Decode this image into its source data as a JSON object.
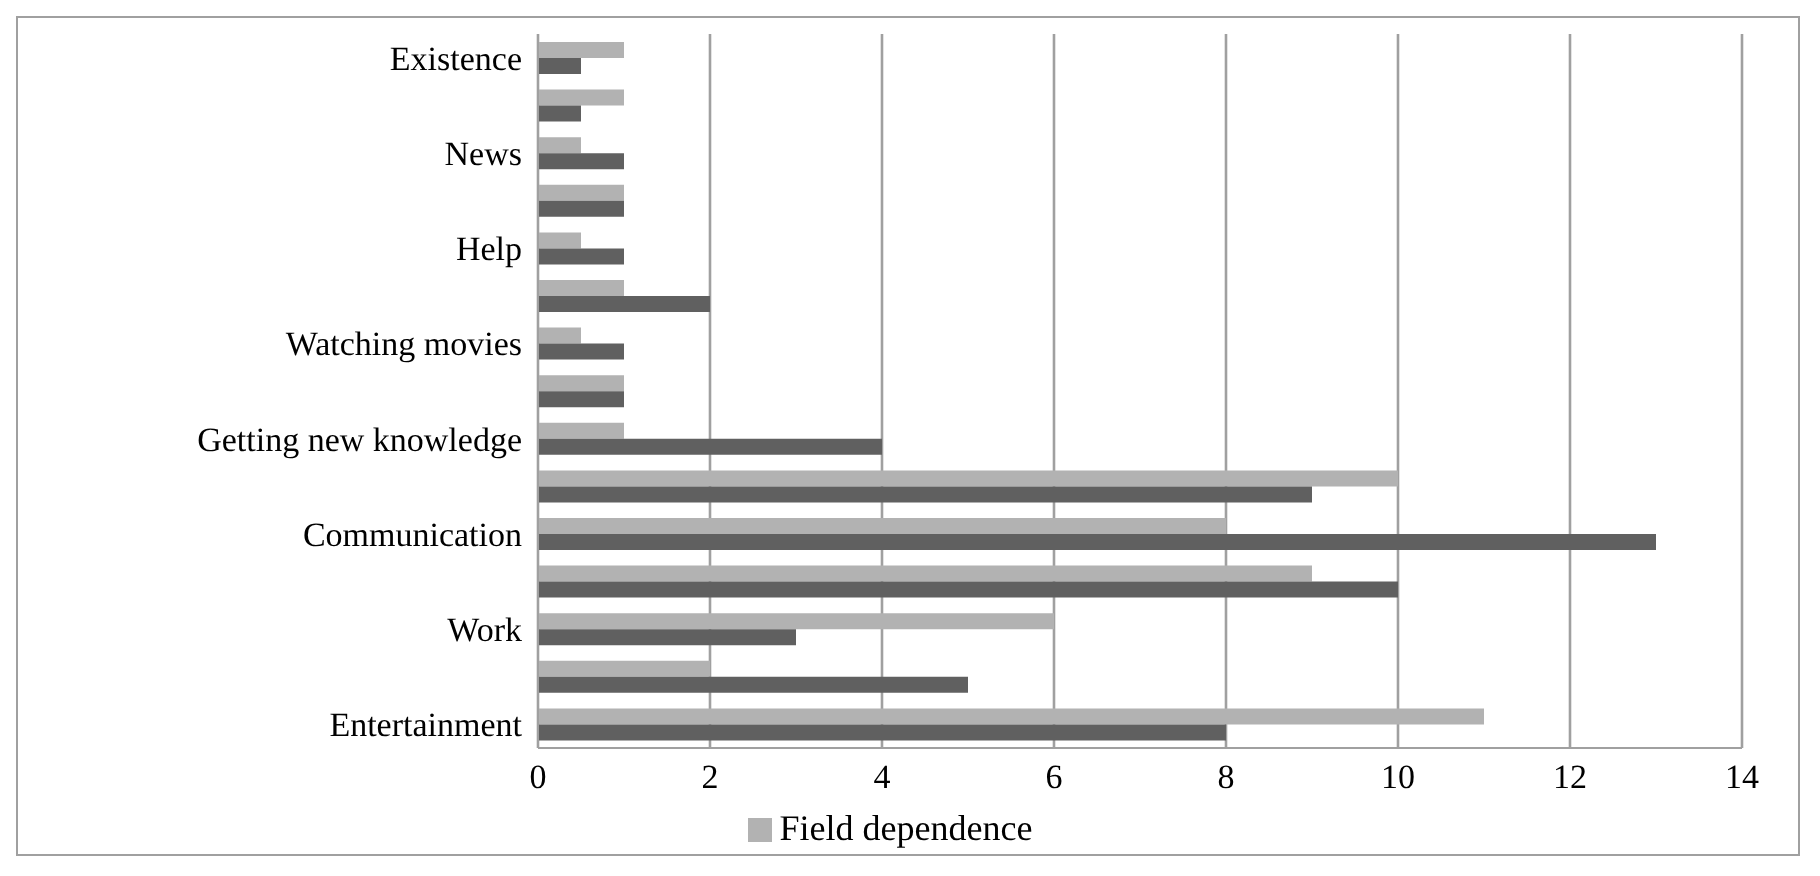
{
  "chart_data": {
    "type": "bar",
    "orientation": "horizontal",
    "categories": [
      "Existence",
      null,
      "News",
      null,
      "Help",
      null,
      "Watching movies",
      null,
      "Getting new knowledge",
      null,
      "Communication",
      null,
      "Work",
      null,
      "Entertainment"
    ],
    "series": [
      {
        "name": "Field dependence",
        "color": "#b2b2b2",
        "values": [
          1,
          1,
          0.5,
          1,
          0.5,
          1,
          0.5,
          1,
          1,
          10,
          8,
          9,
          6,
          2,
          11
        ]
      },
      {
        "color": "#606060",
        "values": [
          0.5,
          0.5,
          1,
          1,
          1,
          2,
          1,
          1,
          4,
          9,
          13,
          10,
          3,
          5,
          8
        ]
      }
    ],
    "xlim": [
      0,
      14
    ],
    "xticks": [
      0,
      2,
      4,
      6,
      8,
      10,
      12,
      14
    ],
    "grid": "x",
    "legend": "bottom"
  }
}
